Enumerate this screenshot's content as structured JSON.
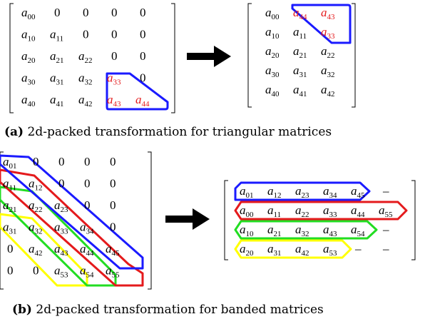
{
  "panel_a": {
    "caption_label": "(a)",
    "caption_text": " 2d-packed transformation for triangular matrices",
    "source": [
      [
        "a00",
        "0",
        "0",
        "0",
        "0"
      ],
      [
        "a10",
        "a11",
        "0",
        "0",
        "0"
      ],
      [
        "a20",
        "a21",
        "a22",
        "0",
        "0"
      ],
      [
        "a30",
        "a31",
        "a32",
        "a33",
        "0"
      ],
      [
        "a40",
        "a41",
        "a42",
        "a43",
        "a44"
      ]
    ],
    "source_red": [
      "3,3",
      "4,3",
      "4,4"
    ],
    "result": [
      [
        "a00",
        "a44",
        "a43"
      ],
      [
        "a10",
        "a11",
        "a33"
      ],
      [
        "a20",
        "a21",
        "a22"
      ],
      [
        "a30",
        "a31",
        "a32"
      ],
      [
        "a40",
        "a41",
        "a42"
      ]
    ],
    "result_red": [
      "0,1",
      "0,2",
      "1,2"
    ]
  },
  "panel_b": {
    "caption_label": "(b)",
    "caption_text": " 2d-packed transformation for banded matrices",
    "source": [
      [
        "a01",
        "0",
        "0",
        "0",
        "0"
      ],
      [
        "a11",
        "a12",
        "0",
        "0",
        "0"
      ],
      [
        "a21",
        "a22",
        "a23",
        "0",
        "0"
      ],
      [
        "a31",
        "a32",
        "a33",
        "a34",
        "0"
      ],
      [
        "0",
        "a42",
        "a43",
        "a44",
        "a45"
      ],
      [
        "0",
        "0",
        "a53",
        "a54",
        "a55"
      ]
    ],
    "result": [
      [
        "a01",
        "a12",
        "a23",
        "a34",
        "a45",
        "–"
      ],
      [
        "a00",
        "a11",
        "a22",
        "a33",
        "a44",
        "a55"
      ],
      [
        "a10",
        "a21",
        "a32",
        "a43",
        "a54",
        "–"
      ],
      [
        "a20",
        "a31",
        "a42",
        "a53",
        "–",
        "–"
      ]
    ]
  },
  "colors": {
    "blue": "#1a1aff",
    "red": "#e41a1c",
    "green": "#22dd22",
    "yellow": "#ffff00",
    "arrow": "#000000"
  }
}
